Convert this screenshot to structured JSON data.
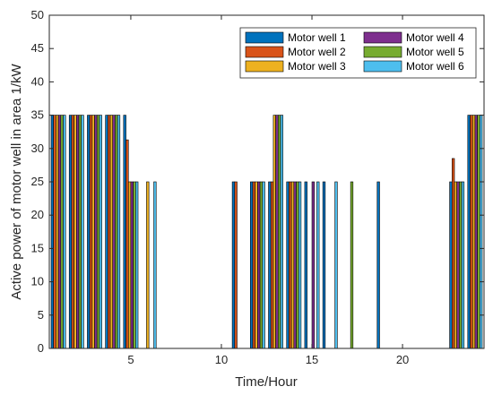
{
  "chart_data": {
    "type": "bar",
    "xlabel": "Time/Hour",
    "ylabel": "Active power of motor well in area 1/kW",
    "xlim": [
      0.5,
      24.5
    ],
    "ylim": [
      0,
      50
    ],
    "xticks": [
      5,
      10,
      15,
      20
    ],
    "yticks": [
      0,
      5,
      10,
      15,
      20,
      25,
      30,
      35,
      40,
      45,
      50
    ],
    "grid": false,
    "legend_position": "top-right",
    "x": [
      1,
      2,
      3,
      4,
      5,
      6,
      7,
      8,
      9,
      10,
      11,
      12,
      13,
      14,
      15,
      16,
      17,
      18,
      19,
      20,
      21,
      22,
      23,
      24
    ],
    "series": [
      {
        "name": "Motor well 1",
        "color": "#0072BD",
        "values": [
          35,
          35,
          35,
          35,
          35,
          0,
          0,
          0,
          0,
          0,
          25,
          25,
          25,
          25,
          25,
          25,
          0,
          0,
          25,
          0,
          0,
          0,
          25,
          35
        ]
      },
      {
        "name": "Motor well 2",
        "color": "#D95319",
        "values": [
          35,
          35,
          35,
          35,
          31.3,
          0,
          0,
          0,
          0,
          0,
          25,
          25,
          25,
          25,
          0,
          0,
          0,
          0,
          0,
          0,
          0,
          0,
          28.5,
          35
        ]
      },
      {
        "name": "Motor well 3",
        "color": "#EDB120",
        "values": [
          35,
          35,
          35,
          35,
          25,
          25,
          0,
          0,
          0,
          0,
          0,
          25,
          35,
          25,
          0,
          0,
          0,
          0,
          0,
          0,
          0,
          0,
          25,
          35
        ]
      },
      {
        "name": "Motor well 4",
        "color": "#7E2F8E",
        "values": [
          35,
          35,
          35,
          35,
          25,
          0,
          0,
          0,
          0,
          0,
          0,
          25,
          35,
          25,
          25,
          0,
          0,
          0,
          0,
          0,
          0,
          0,
          25,
          35
        ]
      },
      {
        "name": "Motor well 5",
        "color": "#77AC30",
        "values": [
          35,
          35,
          35,
          35,
          25,
          0,
          0,
          0,
          0,
          0,
          0,
          25,
          35,
          25,
          0,
          0,
          25,
          0,
          0,
          0,
          0,
          0,
          25,
          35
        ]
      },
      {
        "name": "Motor well 6",
        "color": "#4DBEEE",
        "values": [
          35,
          35,
          35,
          35,
          25,
          25,
          0,
          0,
          0,
          0,
          0,
          25,
          35,
          25,
          25,
          25,
          0,
          0,
          0,
          0,
          0,
          0,
          25,
          35
        ]
      }
    ]
  }
}
